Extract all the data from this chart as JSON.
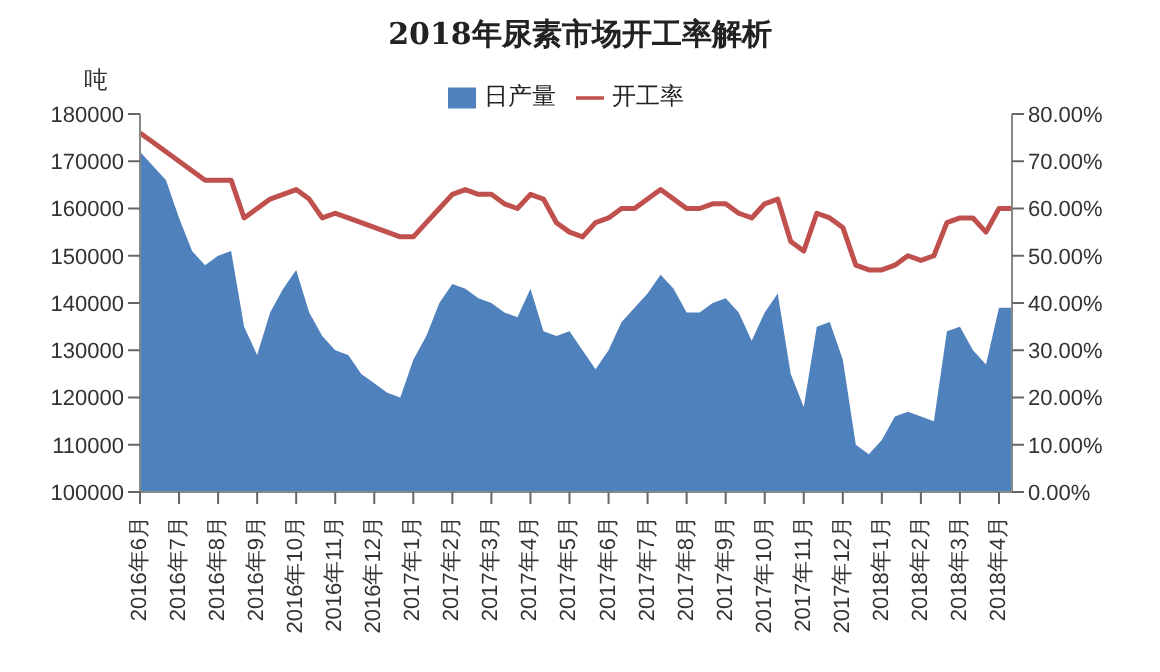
{
  "chart_data": {
    "type": "area",
    "title": "2018年尿素市场开工率解析",
    "ylabel": "吨",
    "categories": [
      "2016年6月",
      null,
      null,
      "2016年7月",
      null,
      null,
      "2016年8月",
      null,
      null,
      "2016年9月",
      null,
      null,
      "2016年10月",
      null,
      null,
      "2016年11月",
      null,
      null,
      "2016年12月",
      null,
      null,
      "2017年1月",
      null,
      null,
      "2017年2月",
      null,
      null,
      "2017年3月",
      null,
      null,
      "2017年4月",
      null,
      null,
      "2017年5月",
      null,
      null,
      "2017年6月",
      null,
      null,
      "2017年7月",
      null,
      null,
      "2017年8月",
      null,
      null,
      "2017年9月",
      null,
      null,
      "2017年10月",
      null,
      null,
      "2017年11月",
      null,
      null,
      "2017年12月",
      null,
      null,
      "2018年1月",
      null,
      null,
      "2018年2月",
      null,
      null,
      "2018年3月",
      null,
      null,
      "2018年4月",
      null
    ],
    "series": [
      {
        "name": "日产量",
        "color": "#4f81bd",
        "values": [
          172000,
          169000,
          166000,
          158000,
          151000,
          148000,
          150000,
          151000,
          135000,
          129000,
          138000,
          143000,
          147000,
          138000,
          133000,
          130000,
          129000,
          125000,
          123000,
          121000,
          120000,
          128000,
          133000,
          140000,
          144000,
          143000,
          141000,
          140000,
          138000,
          137000,
          143000,
          134000,
          133000,
          134000,
          130000,
          126000,
          130000,
          136000,
          139000,
          142000,
          146000,
          143000,
          138000,
          138000,
          140000,
          141000,
          138000,
          132000,
          138000,
          142000,
          125000,
          118000,
          135000,
          136000,
          128000,
          110000,
          108000,
          111000,
          116000,
          117000,
          116000,
          115000,
          134000,
          135000,
          130000,
          127000,
          139000,
          139000
        ]
      },
      {
        "name": "开工率",
        "type": "line",
        "axis": "y2",
        "color": "#c0504d",
        "values": [
          76,
          74,
          72,
          70,
          68,
          66,
          66,
          66,
          58,
          60,
          62,
          63,
          64,
          62,
          58,
          59,
          58,
          57,
          56,
          55,
          54,
          54,
          57,
          60,
          63,
          64,
          63,
          63,
          61,
          60,
          63,
          62,
          57,
          55,
          54,
          57,
          58,
          60,
          60,
          62,
          64,
          62,
          60,
          60,
          61,
          61,
          59,
          58,
          61,
          62,
          53,
          51,
          59,
          58,
          56,
          48,
          47,
          47,
          48,
          50,
          49,
          50,
          57,
          58,
          58,
          55,
          60,
          60
        ]
      }
    ],
    "ylim": [
      100000,
      180000
    ],
    "yticks": [
      100000,
      110000,
      120000,
      130000,
      140000,
      150000,
      160000,
      170000,
      180000
    ],
    "y2lim": [
      0,
      80
    ],
    "y2ticks": [
      {
        "value": 0,
        "label": "0.00%"
      },
      {
        "value": 10,
        "label": "10.00%"
      },
      {
        "value": 20,
        "label": "20.00%"
      },
      {
        "value": 30,
        "label": "30.00%"
      },
      {
        "value": 40,
        "label": "40.00%"
      },
      {
        "value": 50,
        "label": "50.00%"
      },
      {
        "value": 60,
        "label": "60.00%"
      },
      {
        "value": 70,
        "label": "70.00%"
      },
      {
        "value": 80,
        "label": "80.00%"
      }
    ],
    "grid": false,
    "legend": "top"
  }
}
